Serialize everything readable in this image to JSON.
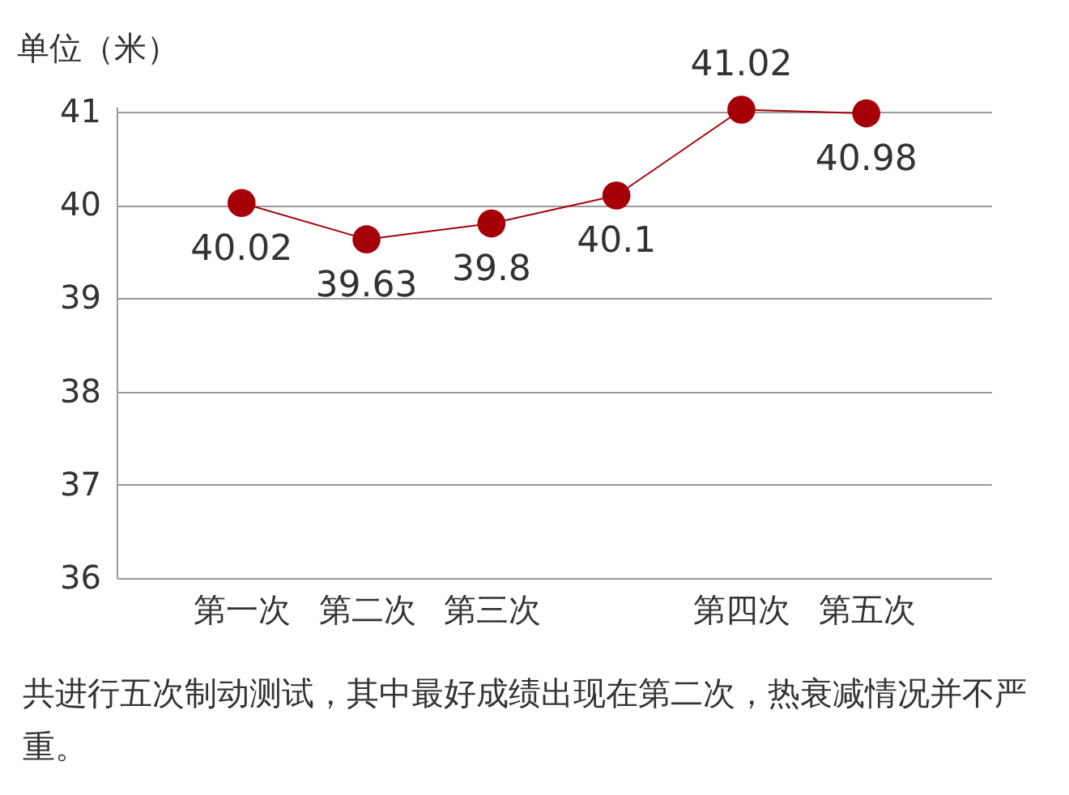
{
  "chart_data": {
    "type": "line",
    "ylabel": "单位（米）",
    "categories": [
      "第一次",
      "第二次",
      "第三次",
      null,
      "第四次",
      "第五次"
    ],
    "series": [
      {
        "color": "#a50008",
        "values": [
          40.02,
          39.63,
          39.8,
          40.1,
          41.02,
          40.98
        ]
      }
    ],
    "ylim": [
      36,
      41.05
    ],
    "yticks": [
      36,
      37,
      38,
      39,
      40,
      41
    ],
    "grid": "y",
    "marker": "circle",
    "data_labels": true,
    "annotations": [
      "共进行五次制动测试，其中最好成绩出现在第二次，热衰减情况并不严重。"
    ]
  }
}
